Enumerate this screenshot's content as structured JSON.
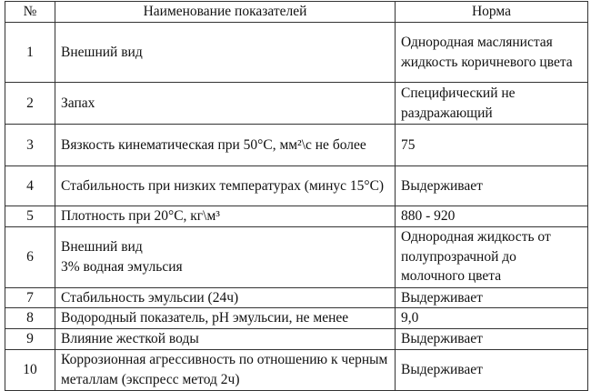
{
  "headers": [
    "№",
    "Наименование показателей",
    "Норма"
  ],
  "rows": [
    {
      "num": "1",
      "name": "Внешний вид",
      "norm": "Однородная маслянистая жидкость коричневого цвета"
    },
    {
      "num": "2",
      "name": "Запах",
      "norm": "Специфический не раздражающий"
    },
    {
      "num": "3",
      "name": "Вязкость кинематическая при 50°С, мм²\\с не более",
      "norm": "75"
    },
    {
      "num": "4",
      "name": "Стабильность при низких температурах (минус 15°С)",
      "norm": "Выдерживает"
    },
    {
      "num": "5",
      "name": "Плотность при 20°С, кг\\м³",
      "norm": "880 - 920"
    },
    {
      "num": "6",
      "name": "Внешний вид\n3% водная эмульсия",
      "norm": "Однородная жидкость от полупрозрачной до молочного цвета"
    },
    {
      "num": "7",
      "name": "Стабильность эмульсии (24ч)",
      "norm": "Выдерживает"
    },
    {
      "num": "8",
      "name": "Водородный показатель, рН эмульсии, не менее",
      "norm": "9,0"
    },
    {
      "num": "9",
      "name": "Влияние жесткой воды",
      "norm": "Выдерживает"
    },
    {
      "num": "10",
      "name": "Коррозионная агрессивность по отношению к черным металлам (экспресс метод 2ч)",
      "norm": "Выдерживает"
    }
  ]
}
